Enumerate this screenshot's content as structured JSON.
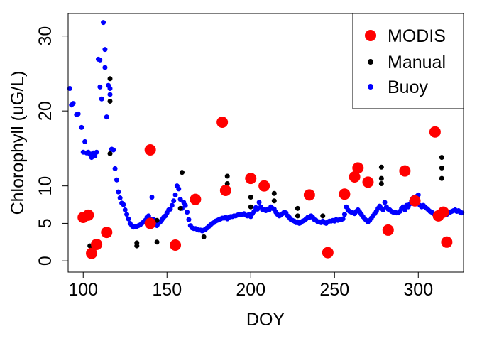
{
  "chart_data": {
    "type": "scatter",
    "title": "",
    "xlabel": "DOY",
    "ylabel": "Chlorophyll (uG/L)",
    "xlim": [
      91,
      327
    ],
    "ylim": [
      -1.5,
      33
    ],
    "xticks": [
      100,
      150,
      200,
      250,
      300
    ],
    "yticks": [
      0,
      5,
      10,
      20,
      30
    ],
    "legend_position": "top-right",
    "series": [
      {
        "name": "MODIS",
        "color": "#ff0000",
        "marker": "large-circle",
        "points": [
          [
            100,
            5.8
          ],
          [
            103,
            6.1
          ],
          [
            105,
            1.0
          ],
          [
            108,
            2.2
          ],
          [
            114,
            3.8
          ],
          [
            140,
            14.8
          ],
          [
            140,
            5.0
          ],
          [
            155,
            2.1
          ],
          [
            167,
            8.2
          ],
          [
            183,
            18.5
          ],
          [
            185,
            9.4
          ],
          [
            200,
            11.0
          ],
          [
            208,
            10.0
          ],
          [
            235,
            8.8
          ],
          [
            246,
            1.1
          ],
          [
            256,
            8.9
          ],
          [
            262,
            11.2
          ],
          [
            264,
            12.4
          ],
          [
            270,
            10.5
          ],
          [
            282,
            4.1
          ],
          [
            292,
            12.0
          ],
          [
            298,
            8.0
          ],
          [
            310,
            17.2
          ],
          [
            312,
            6.0
          ],
          [
            315,
            6.5
          ],
          [
            317,
            2.5
          ]
        ]
      },
      {
        "name": "Manual",
        "color": "#000000",
        "marker": "small-circle",
        "points": [
          [
            104,
            2.0
          ],
          [
            106,
            1.7
          ],
          [
            116,
            21.3
          ],
          [
            116,
            24.3
          ],
          [
            116,
            14.3
          ],
          [
            132,
            2.4
          ],
          [
            132,
            2.0
          ],
          [
            144,
            2.5
          ],
          [
            144,
            5.4
          ],
          [
            158,
            7.0
          ],
          [
            159,
            11.8
          ],
          [
            172,
            3.2
          ],
          [
            186,
            10.3
          ],
          [
            186,
            11.3
          ],
          [
            200,
            7.2
          ],
          [
            200,
            8.5
          ],
          [
            214,
            8.0
          ],
          [
            214,
            9.0
          ],
          [
            228,
            6.0
          ],
          [
            228,
            7.0
          ],
          [
            243,
            6.0
          ],
          [
            278,
            11.0
          ],
          [
            278,
            12.5
          ],
          [
            278,
            10.3
          ],
          [
            314,
            13.8
          ],
          [
            314,
            12.4
          ],
          [
            314,
            11.0
          ]
        ]
      },
      {
        "name": "Buoy",
        "color": "#0000ff",
        "marker": "small-circle",
        "points": [
          [
            92,
            23.0
          ],
          [
            93,
            20.8
          ],
          [
            94,
            21.0
          ],
          [
            96,
            19.5
          ],
          [
            97,
            19.6
          ],
          [
            99,
            17.8
          ],
          [
            100,
            14.5
          ],
          [
            101,
            15.9
          ],
          [
            102,
            14.4
          ],
          [
            103,
            14.5
          ],
          [
            104,
            14.2
          ],
          [
            105,
            13.8
          ],
          [
            106,
            14.4
          ],
          [
            107,
            14.0
          ],
          [
            108,
            14.5
          ],
          [
            109,
            26.9
          ],
          [
            110,
            26.8
          ],
          [
            110,
            23.2
          ],
          [
            111,
            21.6
          ],
          [
            112,
            31.8
          ],
          [
            113,
            28.2
          ],
          [
            113,
            25.8
          ],
          [
            114,
            19.2
          ],
          [
            115,
            23.4
          ],
          [
            116,
            23.0
          ],
          [
            116,
            22.2
          ],
          [
            117,
            14.9
          ],
          [
            118,
            14.8
          ],
          [
            119,
            12.3
          ],
          [
            120,
            10.8
          ],
          [
            121,
            9.2
          ],
          [
            122,
            8.4
          ],
          [
            123,
            7.7
          ],
          [
            124,
            7.5
          ],
          [
            125,
            6.8
          ],
          [
            126,
            6.2
          ],
          [
            127,
            5.6
          ],
          [
            128,
            5.0
          ],
          [
            129,
            4.7
          ],
          [
            130,
            4.5
          ],
          [
            131,
            4.6
          ],
          [
            132,
            4.6
          ],
          [
            133,
            4.7
          ],
          [
            134,
            4.8
          ],
          [
            135,
            5.0
          ],
          [
            136,
            5.2
          ],
          [
            137,
            5.4
          ],
          [
            138,
            5.8
          ],
          [
            139,
            6.0
          ],
          [
            140,
            5.6
          ],
          [
            141,
            8.5
          ],
          [
            142,
            5.5
          ],
          [
            143,
            5.3
          ],
          [
            144,
            4.7
          ],
          [
            145,
            5.0
          ],
          [
            146,
            5.2
          ],
          [
            147,
            5.5
          ],
          [
            148,
            5.8
          ],
          [
            149,
            6.0
          ],
          [
            150,
            6.4
          ],
          [
            151,
            6.8
          ],
          [
            152,
            6.9
          ],
          [
            153,
            7.4
          ],
          [
            154,
            8.0
          ],
          [
            155,
            8.8
          ],
          [
            156,
            10.0
          ],
          [
            157,
            9.6
          ],
          [
            158,
            8.2
          ],
          [
            159,
            7.0
          ],
          [
            160,
            7.8
          ],
          [
            161,
            7.4
          ],
          [
            162,
            6.5
          ],
          [
            163,
            5.5
          ],
          [
            164,
            4.7
          ],
          [
            165,
            4.4
          ],
          [
            166,
            4.3
          ],
          [
            167,
            4.3
          ],
          [
            168,
            4.2
          ],
          [
            169,
            4.1
          ],
          [
            170,
            4.1
          ],
          [
            171,
            4.0
          ],
          [
            172,
            4.1
          ],
          [
            173,
            4.2
          ],
          [
            174,
            4.4
          ],
          [
            175,
            4.6
          ],
          [
            176,
            4.8
          ],
          [
            177,
            5.0
          ],
          [
            178,
            5.1
          ],
          [
            179,
            5.3
          ],
          [
            180,
            5.4
          ],
          [
            181,
            5.5
          ],
          [
            182,
            5.6
          ],
          [
            183,
            5.7
          ],
          [
            184,
            5.7
          ],
          [
            185,
            5.8
          ],
          [
            186,
            5.6
          ],
          [
            187,
            5.8
          ],
          [
            188,
            5.9
          ],
          [
            189,
            5.9
          ],
          [
            190,
            6.0
          ],
          [
            191,
            6.0
          ],
          [
            192,
            6.1
          ],
          [
            193,
            6.2
          ],
          [
            194,
            6.2
          ],
          [
            195,
            6.2
          ],
          [
            196,
            6.3
          ],
          [
            197,
            6.1
          ],
          [
            198,
            6.0
          ],
          [
            199,
            6.2
          ],
          [
            200,
            5.9
          ],
          [
            201,
            6.3
          ],
          [
            202,
            6.6
          ],
          [
            203,
            7.1
          ],
          [
            204,
            6.9
          ],
          [
            205,
            7.8
          ],
          [
            206,
            7.2
          ],
          [
            207,
            6.8
          ],
          [
            208,
            6.8
          ],
          [
            209,
            6.7
          ],
          [
            210,
            6.9
          ],
          [
            211,
            6.8
          ],
          [
            212,
            7.2
          ],
          [
            213,
            7.0
          ],
          [
            214,
            6.9
          ],
          [
            215,
            6.5
          ],
          [
            216,
            6.2
          ],
          [
            217,
            6.0
          ],
          [
            218,
            6.1
          ],
          [
            219,
            6.3
          ],
          [
            220,
            6.5
          ],
          [
            221,
            6.4
          ],
          [
            222,
            6.0
          ],
          [
            223,
            5.8
          ],
          [
            224,
            5.5
          ],
          [
            225,
            5.4
          ],
          [
            226,
            5.3
          ],
          [
            227,
            5.1
          ],
          [
            228,
            5.2
          ],
          [
            229,
            5.0
          ],
          [
            230,
            5.1
          ],
          [
            231,
            5.3
          ],
          [
            232,
            5.4
          ],
          [
            233,
            5.6
          ],
          [
            234,
            5.8
          ],
          [
            235,
            5.8
          ],
          [
            236,
            6.0
          ],
          [
            237,
            5.8
          ],
          [
            238,
            5.5
          ],
          [
            239,
            5.4
          ],
          [
            240,
            5.2
          ],
          [
            241,
            5.2
          ],
          [
            242,
            5.1
          ],
          [
            243,
            5.3
          ],
          [
            244,
            5.1
          ],
          [
            245,
            5.0
          ],
          [
            246,
            5.2
          ],
          [
            247,
            5.3
          ],
          [
            248,
            5.3
          ],
          [
            249,
            5.4
          ],
          [
            250,
            5.3
          ],
          [
            251,
            5.5
          ],
          [
            252,
            5.4
          ],
          [
            253,
            5.5
          ],
          [
            254,
            5.5
          ],
          [
            255,
            5.6
          ],
          [
            256,
            6.2
          ],
          [
            257,
            7.2
          ],
          [
            258,
            6.8
          ],
          [
            259,
            6.6
          ],
          [
            260,
            6.5
          ],
          [
            261,
            6.4
          ],
          [
            262,
            6.3
          ],
          [
            263,
            6.6
          ],
          [
            264,
            6.8
          ],
          [
            265,
            6.5
          ],
          [
            266,
            6.2
          ],
          [
            267,
            5.9
          ],
          [
            268,
            5.6
          ],
          [
            269,
            5.4
          ],
          [
            270,
            5.2
          ],
          [
            271,
            5.4
          ],
          [
            272,
            5.7
          ],
          [
            273,
            6.0
          ],
          [
            274,
            6.3
          ],
          [
            275,
            6.6
          ],
          [
            276,
            7.0
          ],
          [
            277,
            7.3
          ],
          [
            278,
            7.0
          ],
          [
            279,
            6.8
          ],
          [
            280,
            7.8
          ],
          [
            281,
            7.2
          ],
          [
            282,
            6.9
          ],
          [
            283,
            6.8
          ],
          [
            284,
            6.6
          ],
          [
            285,
            6.5
          ],
          [
            286,
            6.5
          ],
          [
            287,
            6.4
          ],
          [
            288,
            6.4
          ],
          [
            289,
            6.6
          ],
          [
            290,
            7.0
          ],
          [
            291,
            7.2
          ],
          [
            292,
            6.8
          ],
          [
            293,
            7.4
          ],
          [
            294,
            7.2
          ],
          [
            295,
            7.6
          ],
          [
            296,
            8.0
          ],
          [
            297,
            8.4
          ],
          [
            298,
            8.2
          ],
          [
            299,
            8.6
          ],
          [
            300,
            8.8
          ],
          [
            301,
            7.4
          ],
          [
            302,
            7.2
          ],
          [
            303,
            7.4
          ],
          [
            304,
            7.2
          ],
          [
            305,
            7.0
          ],
          [
            306,
            6.8
          ],
          [
            307,
            6.6
          ],
          [
            308,
            6.5
          ],
          [
            309,
            6.3
          ],
          [
            311,
            6.0
          ],
          [
            312,
            6.2
          ],
          [
            313,
            6.3
          ],
          [
            314,
            6.4
          ],
          [
            316,
            6.3
          ],
          [
            317,
            6.2
          ],
          [
            318,
            6.4
          ],
          [
            319,
            6.5
          ],
          [
            320,
            6.6
          ],
          [
            321,
            6.7
          ],
          [
            322,
            6.8
          ],
          [
            323,
            6.6
          ],
          [
            324,
            6.7
          ],
          [
            325,
            6.5
          ],
          [
            326,
            6.4
          ]
        ]
      }
    ]
  }
}
